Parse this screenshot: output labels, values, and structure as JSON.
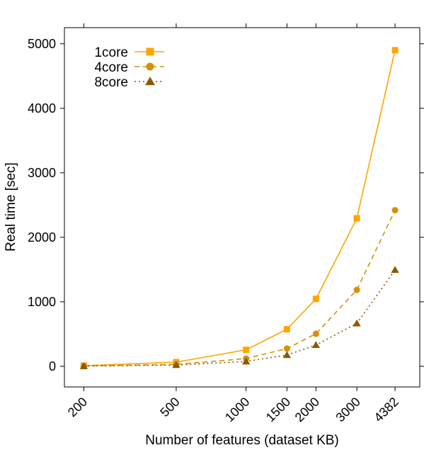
{
  "chart_data": {
    "type": "line",
    "title": "",
    "xlabel": "Number of features (dataset KB)",
    "ylabel": "Real time [sec]",
    "x_scale": "log",
    "x": [
      200,
      500,
      1000,
      1500,
      2000,
      3000,
      4382
    ],
    "x_tick_labels": [
      "200",
      "500",
      "1000",
      "1500",
      "2000",
      "3000",
      "4382"
    ],
    "y_ticks": [
      0,
      1000,
      2000,
      3000,
      4000,
      5000
    ],
    "y_tick_labels": [
      "0",
      "1000",
      "2000",
      "3000",
      "4000",
      "5000"
    ],
    "xlim": [
      165,
      5600
    ],
    "ylim": [
      -320,
      5250
    ],
    "grid": false,
    "legend_position": "top-left",
    "series": [
      {
        "name": "1core",
        "color": "#FFA500",
        "line": "solid",
        "marker": "square",
        "values": [
          10,
          65,
          255,
          575,
          1045,
          2295,
          4900
        ]
      },
      {
        "name": "4core",
        "color": "#D4900A",
        "line": "dashed",
        "marker": "circle",
        "values": [
          5,
          30,
          120,
          275,
          505,
          1185,
          2420
        ]
      },
      {
        "name": "8core",
        "color": "#8B5A00",
        "line": "dotted",
        "marker": "triangle",
        "values": [
          3,
          20,
          75,
          175,
          330,
          665,
          1495
        ]
      }
    ]
  }
}
